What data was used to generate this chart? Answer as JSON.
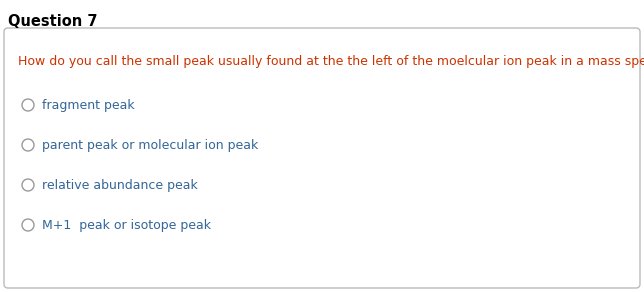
{
  "title": "Question 7",
  "question": "How do you call the small peak usually found at the the left of the moelcular ion peak in a mass spectra?",
  "options": [
    "fragment peak",
    "parent peak or molecular ion peak",
    "relative abundance peak",
    "M+1  peak or isotope peak"
  ],
  "title_color": "#000000",
  "question_color": "#cc3300",
  "option_color": "#336699",
  "bg_color": "#ffffff",
  "border_color": "#bbbbbb",
  "title_fontsize": 10.5,
  "question_fontsize": 9,
  "option_fontsize": 9
}
